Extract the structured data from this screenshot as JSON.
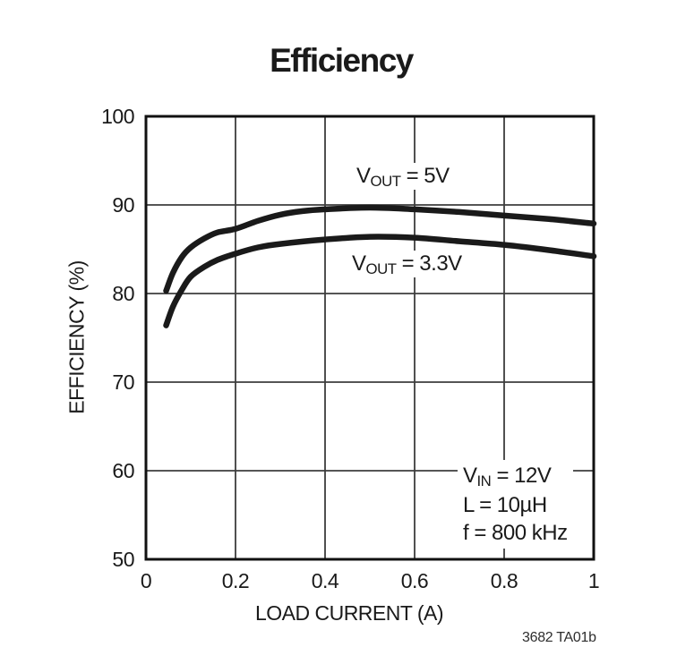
{
  "page": {
    "figure_code": "3682 TA01b"
  },
  "chart_data": {
    "type": "line",
    "title": "Efficiency",
    "xlabel": "LOAD CURRENT (A)",
    "ylabel": "EFFICIENCY (%)",
    "xlim": [
      0,
      1
    ],
    "ylim": [
      50,
      100
    ],
    "xticks": [
      0,
      0.2,
      0.4,
      0.6,
      0.8,
      1
    ],
    "xtick_labels": [
      "0",
      "0.2",
      "0.4",
      "0.6",
      "0.8",
      "1"
    ],
    "yticks": [
      50,
      60,
      70,
      80,
      90,
      100
    ],
    "ytick_labels": [
      "50",
      "60",
      "70",
      "80",
      "90",
      "100"
    ],
    "grid": true,
    "legend_position": "inline-annotations",
    "colors": {
      "curve": "#1a1a1a",
      "grid": "#3d3d3d",
      "border": "#111111",
      "background": "#ffffff"
    },
    "series": [
      {
        "name": "VOUT = 5V",
        "points": [
          [
            0.045,
            80.3
          ],
          [
            0.06,
            82.3
          ],
          [
            0.08,
            84.1
          ],
          [
            0.1,
            85.2
          ],
          [
            0.13,
            86.2
          ],
          [
            0.16,
            86.9
          ],
          [
            0.2,
            87.3
          ],
          [
            0.25,
            88.2
          ],
          [
            0.3,
            88.9
          ],
          [
            0.35,
            89.3
          ],
          [
            0.4,
            89.5
          ],
          [
            0.5,
            89.7
          ],
          [
            0.6,
            89.5
          ],
          [
            0.7,
            89.2
          ],
          [
            0.8,
            88.8
          ],
          [
            0.9,
            88.4
          ],
          [
            1.0,
            87.9
          ]
        ]
      },
      {
        "name": "VOUT = 3.3V",
        "points": [
          [
            0.045,
            76.4
          ],
          [
            0.06,
            78.5
          ],
          [
            0.08,
            80.4
          ],
          [
            0.1,
            81.9
          ],
          [
            0.13,
            83.0
          ],
          [
            0.16,
            83.8
          ],
          [
            0.2,
            84.5
          ],
          [
            0.25,
            85.2
          ],
          [
            0.3,
            85.6
          ],
          [
            0.4,
            86.1
          ],
          [
            0.5,
            86.4
          ],
          [
            0.6,
            86.3
          ],
          [
            0.7,
            85.9
          ],
          [
            0.8,
            85.5
          ],
          [
            0.9,
            84.9
          ],
          [
            1.0,
            84.2
          ]
        ]
      }
    ],
    "annotations": [
      "VIN = 12V",
      "L = 10µH",
      "f = 800 kHz"
    ]
  },
  "labels": {
    "series_5v": {
      "pre": "V",
      "sub": "OUT",
      "post": " = 5V"
    },
    "series_3v3": {
      "pre": "V",
      "sub": "OUT",
      "post": " = 3.3V"
    },
    "cond_1": {
      "pre": "V",
      "sub": "IN",
      "post": " = 12V"
    },
    "cond_2": "L = 10µH",
    "cond_3": "f = 800 kHz"
  }
}
